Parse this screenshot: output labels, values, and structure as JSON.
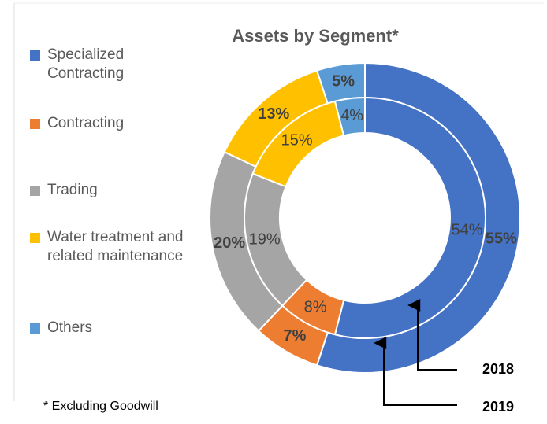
{
  "chart_data": {
    "type": "doughnut",
    "title": "Assets by Segment*",
    "categories": [
      "Specialized Contracting",
      "Contracting",
      "Trading",
      "Water treatment and related maintenance",
      "Others"
    ],
    "colors": [
      "#4472c4",
      "#ed7d31",
      "#a5a5a5",
      "#ffc000",
      "#5b9bd5"
    ],
    "series": [
      {
        "name": "2019",
        "values": [
          55,
          7,
          20,
          13,
          5
        ],
        "value_labels": [
          "55%",
          "7%",
          "20%",
          "13%",
          "5%"
        ]
      },
      {
        "name": "2018",
        "values": [
          54,
          8,
          19,
          15,
          4
        ],
        "value_labels": [
          "54%",
          "8%",
          "19%",
          "15%",
          "4%"
        ]
      }
    ],
    "footnote": "* Excluding Goodwill"
  }
}
